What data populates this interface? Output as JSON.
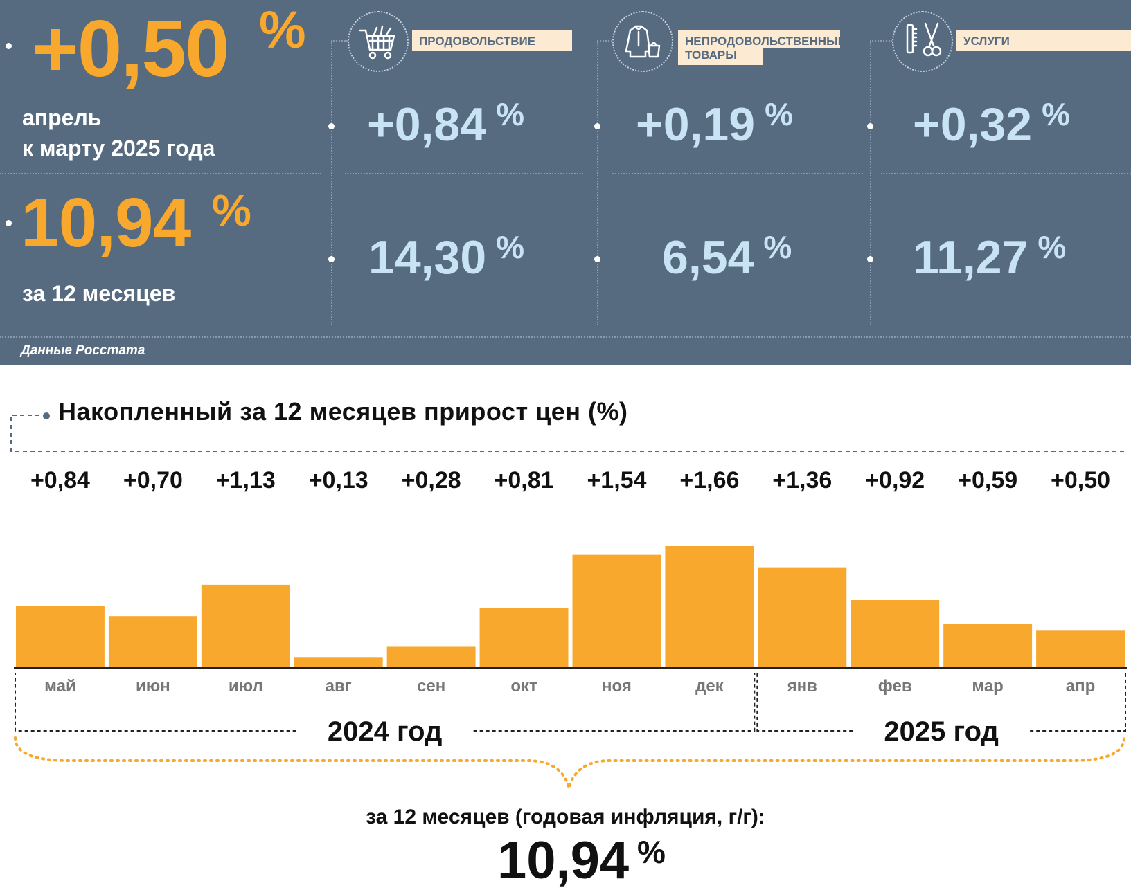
{
  "header": {
    "monthly": {
      "value": "+0,50",
      "unit": "%",
      "label_line1": "апрель",
      "label_line2": "к марту 2025 года"
    },
    "annual": {
      "value": "10,94",
      "unit": "%",
      "label": "за 12 месяцев"
    },
    "source": "Данные Росстата"
  },
  "categories": [
    {
      "label": "ПРОДОВОЛЬСТВИЕ",
      "icon": "shopping-cart-icon",
      "monthly": "+0,84",
      "annual": "14,30",
      "unit": "%"
    },
    {
      "label_line1": "НЕПРОДОВОЛЬСТВЕННЫЕ",
      "label_line2": "ТОВАРЫ",
      "icon": "clothes-bag-icon",
      "monthly": "+0,19",
      "annual": "6,54",
      "unit": "%"
    },
    {
      "label": "УСЛУГИ",
      "icon": "comb-scissors-icon",
      "monthly": "+0,32",
      "annual": "11,27",
      "unit": "%"
    }
  ],
  "chart_data": {
    "type": "bar",
    "title": "Накопленный за 12 месяцев прирост цен (%)",
    "categories": [
      "май",
      "июн",
      "июл",
      "авг",
      "сен",
      "окт",
      "ноя",
      "дек",
      "янв",
      "фев",
      "мар",
      "апр"
    ],
    "values": [
      0.84,
      0.7,
      1.13,
      0.13,
      0.28,
      0.81,
      1.54,
      1.66,
      1.36,
      0.92,
      0.59,
      0.5
    ],
    "value_labels": [
      "+0,84",
      "+0,70",
      "+1,13",
      "+0,13",
      "+0,28",
      "+0,81",
      "+1,54",
      "+1,66",
      "+1,36",
      "+0,92",
      "+0,59",
      "+0,50"
    ],
    "year_groups": [
      {
        "label": "2024 год",
        "start": 0,
        "end": 7
      },
      {
        "label": "2025 год",
        "start": 8,
        "end": 11
      }
    ],
    "bar_color": "#f9a82e",
    "grid": false,
    "legend": "none"
  },
  "footer": {
    "caption": "за 12 месяцев (годовая инфляция, г/г):",
    "value": "10,94",
    "unit": "%"
  }
}
